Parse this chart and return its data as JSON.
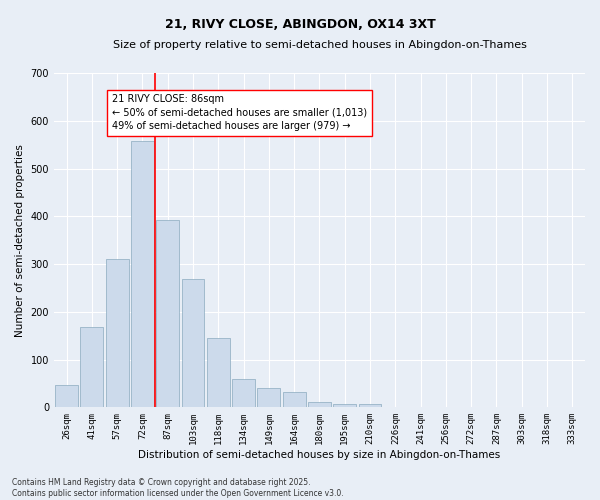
{
  "title": "21, RIVY CLOSE, ABINGDON, OX14 3XT",
  "subtitle": "Size of property relative to semi-detached houses in Abingdon-on-Thames",
  "xlabel": "Distribution of semi-detached houses by size in Abingdon-on-Thames",
  "ylabel": "Number of semi-detached properties",
  "bar_labels": [
    "26sqm",
    "41sqm",
    "57sqm",
    "72sqm",
    "87sqm",
    "103sqm",
    "118sqm",
    "134sqm",
    "149sqm",
    "164sqm",
    "180sqm",
    "195sqm",
    "210sqm",
    "226sqm",
    "241sqm",
    "256sqm",
    "272sqm",
    "287sqm",
    "303sqm",
    "318sqm",
    "333sqm"
  ],
  "bar_values": [
    47,
    168,
    310,
    557,
    393,
    268,
    145,
    60,
    40,
    33,
    11,
    8,
    8,
    1,
    0,
    0,
    0,
    0,
    0,
    0,
    0
  ],
  "bar_color": "#ccdaeb",
  "bar_edge_color": "#8aaabf",
  "vline_x_index": 3.5,
  "vline_color": "red",
  "annotation_text": "21 RIVY CLOSE: 86sqm\n← 50% of semi-detached houses are smaller (1,013)\n49% of semi-detached houses are larger (979) →",
  "annotation_box_color": "white",
  "annotation_box_edge": "red",
  "ylim": [
    0,
    700
  ],
  "yticks": [
    0,
    100,
    200,
    300,
    400,
    500,
    600,
    700
  ],
  "background_color": "#e8eef6",
  "grid_color": "white",
  "footnote": "Contains HM Land Registry data © Crown copyright and database right 2025.\nContains public sector information licensed under the Open Government Licence v3.0.",
  "title_fontsize": 9,
  "subtitle_fontsize": 8,
  "xlabel_fontsize": 7.5,
  "ylabel_fontsize": 7.5,
  "tick_fontsize": 6.5,
  "annotation_fontsize": 7,
  "footnote_fontsize": 5.5
}
